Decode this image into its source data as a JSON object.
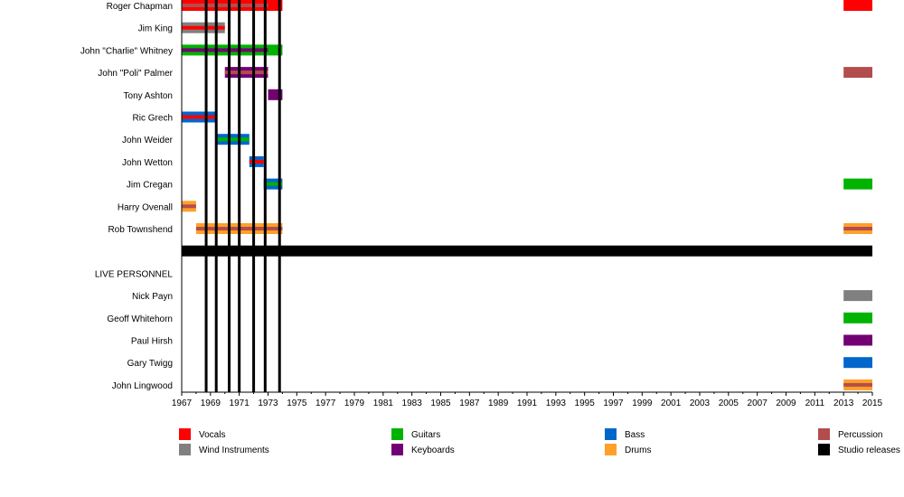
{
  "chart_data": {
    "type": "timeline",
    "xlim": [
      1967,
      2015
    ],
    "ticks": [
      1967,
      1969,
      1971,
      1973,
      1975,
      1977,
      1979,
      1981,
      1983,
      1985,
      1987,
      1989,
      1991,
      1993,
      1995,
      1997,
      1999,
      2001,
      2003,
      2005,
      2007,
      2009,
      2011,
      2013,
      2015
    ],
    "roles": {
      "vocals": {
        "label": "Vocals",
        "color": "#ff0000"
      },
      "wind": {
        "label": "Wind Instruments",
        "color": "#808080"
      },
      "guitars": {
        "label": "Guitars",
        "color": "#00b300"
      },
      "keyboards": {
        "label": "Keyboards",
        "color": "#730073"
      },
      "bass": {
        "label": "Bass",
        "color": "#0066cc"
      },
      "drums": {
        "label": "Drums",
        "color": "#ffa028"
      },
      "percussion": {
        "label": "Percussion",
        "color": "#b34d4d"
      },
      "studio": {
        "label": "Studio releases",
        "color": "#000000"
      }
    },
    "legend_order": [
      "vocals",
      "wind",
      "guitars",
      "keyboards",
      "bass",
      "drums",
      "percussion",
      "studio"
    ],
    "studio_releases": [
      1968.7,
      1969.4,
      1970.3,
      1971.0,
      1972.0,
      1972.8,
      1973.8
    ],
    "rows": [
      {
        "name": "Roger Chapman",
        "bars": [
          {
            "s": 1967,
            "e": 1974,
            "role": "vocals",
            "inner": "percussion",
            "ie": 1973
          },
          {
            "s": 2013,
            "e": 2015,
            "role": "vocals"
          }
        ]
      },
      {
        "name": "Jim King",
        "bars": [
          {
            "s": 1967,
            "e": 1970,
            "role": "wind",
            "inner": "vocals"
          }
        ]
      },
      {
        "name": "John \"Charlie\" Whitney",
        "bars": [
          {
            "s": 1967,
            "e": 1974,
            "role": "guitars",
            "inner": "keyboards",
            "ie": 1973
          }
        ]
      },
      {
        "name": "John \"Poli\" Palmer",
        "bars": [
          {
            "s": 1970,
            "e": 1973,
            "role": "keyboards",
            "inner": "percussion"
          },
          {
            "s": 2013,
            "e": 2015,
            "role": "percussion"
          }
        ]
      },
      {
        "name": "Tony Ashton",
        "bars": [
          {
            "s": 1973,
            "e": 1974,
            "role": "keyboards"
          }
        ]
      },
      {
        "name": "Ric Grech",
        "bars": [
          {
            "s": 1967,
            "e": 1969.45,
            "role": "bass",
            "inner": "vocals"
          }
        ]
      },
      {
        "name": "John Weider",
        "bars": [
          {
            "s": 1969.45,
            "e": 1971.7,
            "role": "bass",
            "inner": "guitars"
          }
        ]
      },
      {
        "name": "John Wetton",
        "bars": [
          {
            "s": 1971.7,
            "e": 1972.7,
            "role": "bass",
            "inner": "vocals"
          }
        ]
      },
      {
        "name": "Jim Cregan",
        "bars": [
          {
            "s": 1972.7,
            "e": 1974,
            "role": "bass",
            "inner": "guitars"
          },
          {
            "s": 2013,
            "e": 2015,
            "role": "guitars"
          }
        ]
      },
      {
        "name": "Harry Ovenall",
        "bars": [
          {
            "s": 1967,
            "e": 1968,
            "role": "drums",
            "inner": "percussion"
          }
        ]
      },
      {
        "name": "Rob Townshend",
        "bars": [
          {
            "s": 1968,
            "e": 1974,
            "role": "drums",
            "inner": "percussion"
          },
          {
            "s": 2013,
            "e": 2015,
            "role": "drums",
            "inner": "percussion"
          }
        ]
      },
      {
        "name": "",
        "separator": true
      },
      {
        "name": "LIVE PERSONNEL",
        "bars": []
      },
      {
        "name": "Nick Payn",
        "bars": [
          {
            "s": 2013,
            "e": 2015,
            "role": "wind"
          }
        ]
      },
      {
        "name": "Geoff Whitehorn",
        "bars": [
          {
            "s": 2013,
            "e": 2015,
            "role": "guitars"
          }
        ]
      },
      {
        "name": "Paul Hirsh",
        "bars": [
          {
            "s": 2013,
            "e": 2015,
            "role": "keyboards"
          }
        ]
      },
      {
        "name": "Gary Twigg",
        "bars": [
          {
            "s": 2013,
            "e": 2015,
            "role": "bass"
          }
        ]
      },
      {
        "name": "John Lingwood",
        "bars": [
          {
            "s": 2013,
            "e": 2015,
            "role": "drums",
            "inner": "percussion"
          }
        ]
      }
    ]
  }
}
